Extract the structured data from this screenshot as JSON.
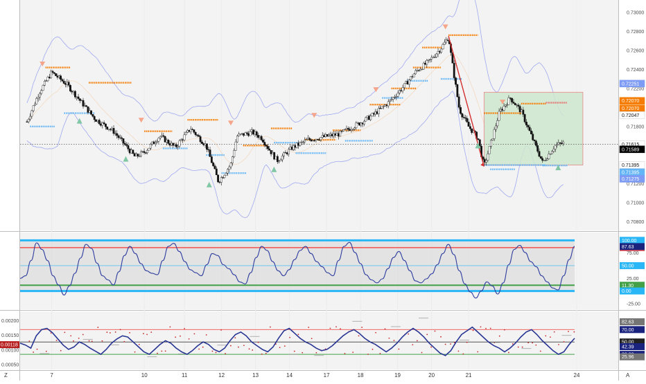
{
  "chart_data": [
    {
      "type": "candlestick",
      "panel": "price",
      "y_ticks": [
        "0.73000",
        "0.72800",
        "0.72600",
        "0.72400",
        "0.72200",
        "0.72000",
        "0.71800",
        "0.71600",
        "0.71400",
        "0.71200",
        "0.71000",
        "0.70800"
      ],
      "ylim": [
        0.7073,
        0.731
      ],
      "x_ticks": [
        "7",
        "10",
        "11",
        "12",
        "13",
        "14",
        "17",
        "18",
        "19",
        "20",
        "21",
        "24"
      ],
      "x_values": [
        7,
        10,
        11,
        12,
        13,
        14,
        17,
        18,
        19,
        20,
        21,
        24
      ],
      "last_price": 0.71589,
      "current_price_line": 0.71615,
      "price_badges": [
        {
          "label": "0.72251",
          "value": 0.72251,
          "color": "#7f9cf5"
        },
        {
          "label": "0.72070",
          "value": 0.7207,
          "color": "#f57c00"
        },
        {
          "label": "0.72070",
          "value": 0.7199,
          "color": "#f57c00"
        },
        {
          "label": "0.72047",
          "value": 0.7192,
          "color": "#ffffff"
        },
        {
          "label": "0.71615",
          "value": 0.71615,
          "color": "#ffffff"
        },
        {
          "label": "0.71589",
          "value": 0.7156,
          "color": "#000000"
        },
        {
          "label": "0.71395",
          "value": 0.71395,
          "color": "#ffffff"
        },
        {
          "label": "0.71395",
          "value": 0.7132,
          "color": "#64b5f6"
        },
        {
          "label": "0.71275",
          "value": 0.7125,
          "color": "#7f9cf5"
        }
      ],
      "key_points": [
        {
          "x": 6.2,
          "y": 0.7185
        },
        {
          "x": 6.6,
          "y": 0.7216
        },
        {
          "x": 7.0,
          "y": 0.7237
        },
        {
          "x": 7.5,
          "y": 0.7224
        },
        {
          "x": 8.0,
          "y": 0.7204
        },
        {
          "x": 8.4,
          "y": 0.7188
        },
        {
          "x": 9.0,
          "y": 0.7175
        },
        {
          "x": 9.7,
          "y": 0.7148
        },
        {
          "x": 10.0,
          "y": 0.7153
        },
        {
          "x": 10.5,
          "y": 0.717
        },
        {
          "x": 11.0,
          "y": 0.7158
        },
        {
          "x": 11.5,
          "y": 0.7178
        },
        {
          "x": 12.0,
          "y": 0.716
        },
        {
          "x": 12.4,
          "y": 0.7122
        },
        {
          "x": 12.8,
          "y": 0.714
        },
        {
          "x": 13.0,
          "y": 0.717
        },
        {
          "x": 13.5,
          "y": 0.7174
        },
        {
          "x": 13.8,
          "y": 0.7168
        },
        {
          "x": 14.0,
          "y": 0.7158
        },
        {
          "x": 14.3,
          "y": 0.7144
        },
        {
          "x": 14.8,
          "y": 0.7158
        },
        {
          "x": 15.3,
          "y": 0.7166
        },
        {
          "x": 16.3,
          "y": 0.7172
        },
        {
          "x": 17.0,
          "y": 0.7184
        },
        {
          "x": 17.4,
          "y": 0.7192
        },
        {
          "x": 17.9,
          "y": 0.7205
        },
        {
          "x": 18.4,
          "y": 0.7222
        },
        {
          "x": 18.8,
          "y": 0.7238
        },
        {
          "x": 19.2,
          "y": 0.7248
        },
        {
          "x": 19.6,
          "y": 0.7262
        },
        {
          "x": 19.85,
          "y": 0.7274
        },
        {
          "x": 20.0,
          "y": 0.724
        },
        {
          "x": 20.2,
          "y": 0.7198
        },
        {
          "x": 20.5,
          "y": 0.718
        },
        {
          "x": 20.8,
          "y": 0.7168
        },
        {
          "x": 21.0,
          "y": 0.7138
        },
        {
          "x": 21.2,
          "y": 0.716
        },
        {
          "x": 21.5,
          "y": 0.7195
        },
        {
          "x": 21.85,
          "y": 0.721
        },
        {
          "x": 22.2,
          "y": 0.7196
        },
        {
          "x": 22.6,
          "y": 0.7165
        },
        {
          "x": 22.9,
          "y": 0.7142
        },
        {
          "x": 23.3,
          "y": 0.716
        },
        {
          "x": 23.6,
          "y": 0.7163
        }
      ],
      "trend_line": [
        {
          "x": 19.85,
          "y": 0.7275
        },
        {
          "x": 21.0,
          "y": 0.7138
        }
      ],
      "target_box": {
        "x0": 21.0,
        "x1": 24.2,
        "y0": 0.71395,
        "y1": 0.7216
      }
    },
    {
      "type": "line",
      "panel": "oscillator",
      "ylim": [
        -32,
        110
      ],
      "y_ticks": [
        "100.00",
        "75.00",
        "50.00",
        "25.00",
        "0.00",
        "-25.00"
      ],
      "levels": [
        {
          "label": "100.00",
          "value": 100,
          "color": "#29b6f6"
        },
        {
          "label": "85.60",
          "value": 85.6,
          "color": "#ef5350"
        },
        {
          "label": "87.63",
          "value": 87.63,
          "color": "#1a237e"
        },
        {
          "label": "50.00",
          "value": 50,
          "color": "#29b6f6"
        },
        {
          "label": "11.30",
          "value": 11.3,
          "color": "#43a047"
        },
        {
          "label": "0.00",
          "value": 0,
          "color": "#29b6f6"
        }
      ],
      "values": [
        25,
        30,
        60,
        95,
        82,
        60,
        30,
        12,
        -8,
        10,
        35,
        65,
        92,
        84,
        55,
        30,
        22,
        12,
        38,
        70,
        88,
        74,
        54,
        40,
        35,
        32,
        60,
        88,
        94,
        78,
        58,
        42,
        36,
        30,
        52,
        74,
        70,
        52,
        44,
        32,
        18,
        14,
        36,
        66,
        88,
        80,
        58,
        40,
        30,
        42,
        62,
        80,
        88,
        74,
        58,
        48,
        36,
        30,
        60,
        88,
        96,
        76,
        54,
        32,
        22,
        16,
        24,
        44,
        66,
        78,
        60,
        40,
        20,
        16,
        24,
        34,
        52,
        74,
        92,
        72,
        40,
        14,
        -2,
        -14,
        0,
        18,
        10,
        -6,
        16,
        52,
        82,
        90,
        76,
        58,
        48,
        30,
        18,
        6,
        2,
        30,
        62,
        88
      ]
    },
    {
      "type": "line",
      "panel": "rsi",
      "ylim": [
        0.00043,
        0.00222
      ],
      "y_ticks": [
        "0.00200",
        "0.00150",
        "0.00100",
        "0.00050"
      ],
      "levels": [
        {
          "label": "82.63",
          "value": 82.63,
          "color": "#757575"
        },
        {
          "label": "70.00",
          "value": 70,
          "color": "#ef5350"
        },
        {
          "label": "50.00",
          "value": 50,
          "color": "#212121"
        },
        {
          "label": "42.39",
          "value": 42.39,
          "color": "#1a237e"
        },
        {
          "label": "30.00",
          "value": 30,
          "color": "#43a047"
        },
        {
          "label": "25.96",
          "value": 25.96,
          "color": "#757575"
        }
      ],
      "current_value_label": "0.00118",
      "values": [
        48,
        45,
        40,
        60,
        70,
        72,
        65,
        55,
        45,
        38,
        42,
        50,
        46,
        40,
        35,
        30,
        38,
        48,
        55,
        60,
        58,
        50,
        42,
        34,
        30,
        38,
        46,
        52,
        48,
        40,
        34,
        30,
        36,
        44,
        50,
        46,
        38,
        34,
        40,
        52,
        62,
        66,
        60,
        50,
        44,
        38,
        34,
        42,
        56,
        68,
        72,
        64,
        56,
        50,
        46,
        40,
        36,
        38,
        44,
        52,
        60,
        66,
        70,
        64,
        56,
        50,
        46,
        40,
        34,
        40,
        48,
        58,
        66,
        72,
        66,
        58,
        48,
        40,
        32,
        28,
        36,
        50,
        62,
        68,
        74,
        66,
        58,
        50,
        44,
        40,
        34,
        40,
        48,
        58,
        66,
        70,
        62,
        52,
        44,
        36,
        30,
        34,
        46,
        56
      ]
    }
  ]
}
